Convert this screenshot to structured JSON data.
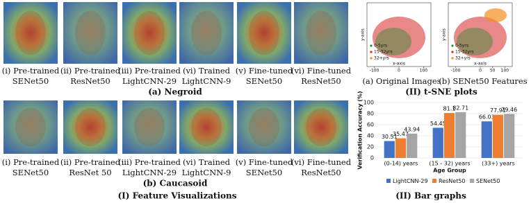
{
  "feature_visualizations": {
    "caption": "(I) Feature Visualizations",
    "rows": [
      {
        "label": "(a) Negroid",
        "captions": [
          [
            "(i) Pre-trained",
            "SENet50"
          ],
          [
            "(ii) Pre-trained",
            "ResNet50"
          ],
          [
            "(iii) Pre-trained",
            "LightCNN-29"
          ],
          [
            "(vi) Trained",
            "LightCNN-9"
          ],
          [
            "(v) Fine-tuned",
            "SENet50"
          ],
          [
            "(vi) Fine-tuned",
            "ResNet50"
          ]
        ]
      },
      {
        "label": "(b) Caucasoid",
        "captions": [
          [
            "(i) Pre-trained",
            "SENet50"
          ],
          [
            "(ii) Pre-trained",
            "ResNet 50"
          ],
          [
            "(iii) Pre-trained",
            "LightCNN-29"
          ],
          [
            "(vi) Trained",
            "LightCNN-9"
          ],
          [
            "(v) Fine-tuned",
            "SENet50"
          ],
          [
            "(vi) Fine-tuned",
            "ResNet50"
          ]
        ]
      }
    ]
  },
  "tsne": {
    "caption": "(II) t-SNE plots",
    "plots": [
      {
        "caption": "(a) Original Images",
        "xlabel": "x-axis",
        "ylabel": "y-axis",
        "xlim": [
          -130,
          130
        ],
        "xticks": [
          -100,
          0,
          100
        ],
        "legend": [
          "0-5yrs",
          "15-32yrs",
          "32+yrs"
        ]
      },
      {
        "caption": "(b) SENet50 Features",
        "xlabel": "x-axis",
        "ylabel": "y-axis",
        "xlim": [
          -130,
          130
        ],
        "xticks": [
          -100,
          0,
          50,
          100
        ],
        "legend": [
          "0-5yrs",
          "15-32yrs",
          "32+yrs"
        ]
      }
    ]
  },
  "chart_data": {
    "type": "bar",
    "caption": "(II) Bar graphs",
    "categories": [
      "(0-14) years",
      "(15 - 32) years",
      "(33+) years"
    ],
    "series": [
      {
        "name": "LightCNN-29",
        "color": "#4472c4",
        "values": [
          30.51,
          54.45,
          66.03
        ]
      },
      {
        "name": "ResNet50",
        "color": "#ed7d31",
        "values": [
          35.47,
          81.1,
          77.91
        ]
      },
      {
        "name": "SENet50",
        "color": "#a5a5a5",
        "values": [
          43.94,
          82.71,
          79.46
        ]
      }
    ],
    "ylim": [
      0,
      100
    ],
    "yticks": [
      0,
      20,
      40,
      60,
      80,
      100
    ],
    "grid": true,
    "y_label": "Verification Accuracy (%)",
    "x_label": "Age Group"
  }
}
